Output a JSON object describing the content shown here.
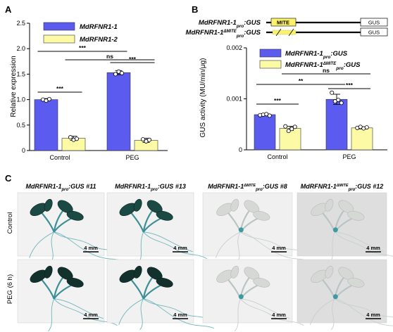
{
  "panels": {
    "a": "A",
    "b": "B",
    "c": "C"
  },
  "chart_data": [
    {
      "type": "bar",
      "categories": [
        "Control",
        "PEG"
      ],
      "series": [
        {
          "name": "MdRFNR1-1",
          "values": [
            1.0,
            1.53
          ],
          "errors": [
            0.02,
            0.04
          ],
          "points": [
            [
              1.0,
              0.98,
              1.01
            ],
            [
              1.5,
              1.55,
              1.52
            ]
          ]
        },
        {
          "name": "MdRFNR1-2",
          "values": [
            0.24,
            0.2
          ],
          "errors": [
            0.04,
            0.04
          ],
          "points": [
            [
              0.26,
              0.21,
              0.23
            ],
            [
              0.22,
              0.18,
              0.21
            ]
          ]
        }
      ],
      "ylabel": "Relative expression",
      "ylim": [
        0,
        2.5
      ],
      "yticks": [
        "0",
        "0.5",
        "1.0",
        "1.5",
        "2.0",
        "2.5"
      ],
      "significance": [
        "***",
        "***",
        "***",
        "ns"
      ],
      "colors": [
        "#5b5bef",
        "#fdfaa6"
      ]
    },
    {
      "type": "bar",
      "categories": [
        "Control",
        "PEG"
      ],
      "series": [
        {
          "name": "MdRFNR1-1",
          "sub": "pro",
          "suffix": ":GUS",
          "values": [
            0.00069,
            0.00099
          ],
          "errors": [
            2e-05,
            0.0001
          ],
          "points": [
            [
              0.00068,
              0.00069,
              0.0007,
              0.00067
            ],
            [
              0.00112,
              0.00095,
              0.00098,
              0.00092
            ]
          ]
        },
        {
          "name": "MdRFNR1-1",
          "sup": "ΔMITE",
          "sub": "pro",
          "suffix": ":GUS",
          "values": [
            0.00042,
            0.00043
          ],
          "errors": [
            4e-05,
            2e-05
          ],
          "points": [
            [
              0.00046,
              0.00037,
              0.00041,
              0.00045
            ],
            [
              0.00043,
              0.00045,
              0.00042,
              0.00044
            ]
          ]
        }
      ],
      "ylabel": "GUS activity (MU/min/μg)",
      "ylim": [
        0,
        0.002
      ],
      "yticks": [
        "0",
        "0.001",
        "0.002"
      ],
      "significance": [
        "***",
        "***",
        "**",
        "ns"
      ],
      "colors": [
        "#5b5bef",
        "#fdfaa6"
      ]
    }
  ],
  "constructs": [
    {
      "name": "MdRFNR1-1",
      "sub": "pro",
      "suffix": ":GUS",
      "box": "MITE",
      "gus": "GUS"
    },
    {
      "name": "MdRFNR1-1",
      "sup": "ΔMITE",
      "sub": "pro",
      "suffix": ":GUS",
      "gus": "GUS"
    }
  ],
  "photos": {
    "columns": [
      {
        "name": "MdRFNR1-1",
        "sub": "pro",
        "suffix": ":GUS #11"
      },
      {
        "name": "MdRFNR1-1",
        "sub": "pro",
        "suffix": ":GUS #13"
      },
      {
        "name": "MdRFNR1-1",
        "sup": "ΔMITE",
        "sub": "pro",
        "suffix": ":GUS #8"
      },
      {
        "name": "MdRFNR1-1",
        "sup": "ΔMITE",
        "sub": "pro",
        "suffix": ":GUS #12"
      }
    ],
    "rows": [
      "Control",
      "PEG (6 h)"
    ],
    "scale_bar": "4 mm",
    "stain_levels": [
      [
        0.85,
        0.8,
        0.25,
        0.12
      ],
      [
        0.95,
        0.9,
        0.1,
        0.08
      ]
    ]
  }
}
